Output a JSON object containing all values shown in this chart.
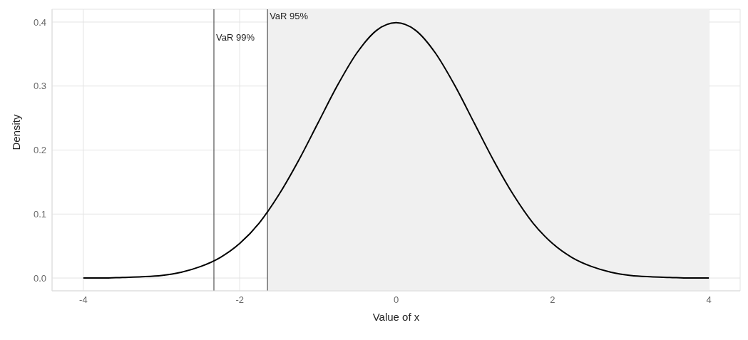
{
  "chart_data": {
    "type": "line",
    "xlabel": "Value of x",
    "ylabel": "Density",
    "x": [
      -4,
      -3.75,
      -3.5,
      -3.25,
      -3,
      -2.75,
      -2.5,
      -2.25,
      -2,
      -1.75,
      -1.5,
      -1.25,
      -1,
      -0.75,
      -0.5,
      -0.25,
      0,
      0.25,
      0.5,
      0.75,
      1,
      1.25,
      1.5,
      1.75,
      2,
      2.25,
      2.5,
      2.75,
      3,
      3.25,
      3.5,
      3.75,
      4
    ],
    "series": [
      {
        "color": "#000000",
        "values": [
          0.0,
          0.0,
          0.001,
          0.002,
          0.004,
          0.009,
          0.018,
          0.032,
          0.054,
          0.086,
          0.13,
          0.183,
          0.242,
          0.301,
          0.352,
          0.387,
          0.399,
          0.387,
          0.352,
          0.301,
          0.242,
          0.183,
          0.13,
          0.086,
          0.054,
          0.032,
          0.018,
          0.009,
          0.004,
          0.002,
          0.001,
          0.0,
          0.0
        ]
      }
    ],
    "xlim": [
      -4.4,
      4.4
    ],
    "ylim": [
      -0.02,
      0.42
    ],
    "xticks": [
      -4,
      -2,
      0,
      2,
      4
    ],
    "yticks": [
      {
        "value": 0,
        "label": "0.0"
      },
      {
        "value": 0.1,
        "label": "0.1"
      },
      {
        "value": 0.2,
        "label": "0.2"
      },
      {
        "value": 0.3,
        "label": "0.3"
      },
      {
        "value": 0.4,
        "label": "0.4"
      }
    ],
    "grid": true,
    "marker": "none",
    "line_style": "solid",
    "ref_lines": [
      {
        "axis": "x",
        "value": -2.33,
        "label": "VaR 99%",
        "color": "#333333"
      },
      {
        "axis": "x",
        "value": -1.645,
        "label": "VaR 95%",
        "color": "#333333"
      }
    ],
    "bands": [
      {
        "axis": "x",
        "from": -1.645,
        "to": 4,
        "color": "#f0f0f0"
      }
    ]
  }
}
